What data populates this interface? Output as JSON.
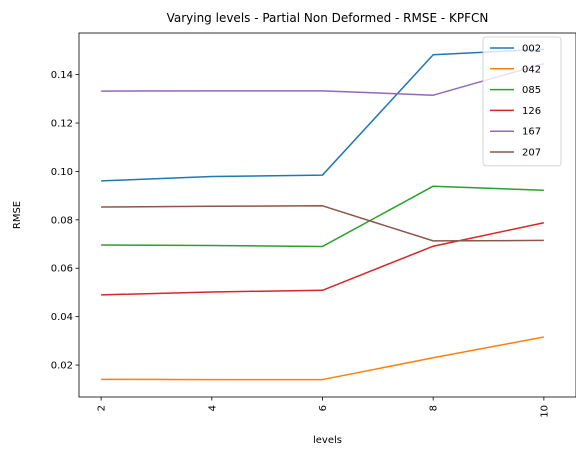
{
  "chart_data": {
    "type": "line",
    "title": "Varying levels - Partial Non Deformed - RMSE - KPFCN",
    "xlabel": "levels",
    "ylabel": "RMSE",
    "x": [
      2,
      4,
      6,
      8,
      10
    ],
    "x_tick_labels": [
      "2",
      "4",
      "6",
      "8",
      "10"
    ],
    "y_ticks": [
      0.02,
      0.04,
      0.06,
      0.08,
      0.1,
      0.12,
      0.14
    ],
    "y_tick_labels": [
      "0.02",
      "0.04",
      "0.06",
      "0.08",
      "0.10",
      "0.12",
      "0.14"
    ],
    "xlim": [
      1.6,
      10.4
    ],
    "ylim": [
      0.0068,
      0.1572
    ],
    "grid": false,
    "legend_position": "top-right",
    "series": [
      {
        "name": "002",
        "color": "#1f77b4",
        "values": [
          0.0961,
          0.0979,
          0.0985,
          0.1482,
          0.1505
        ]
      },
      {
        "name": "042",
        "color": "#ff7f0e",
        "values": [
          0.0141,
          0.014,
          0.014,
          0.023,
          0.0316
        ]
      },
      {
        "name": "085",
        "color": "#2ca02c",
        "values": [
          0.0696,
          0.0694,
          0.069,
          0.0939,
          0.0922
        ]
      },
      {
        "name": "126",
        "color": "#d62728",
        "values": [
          0.049,
          0.0502,
          0.0509,
          0.0691,
          0.0788
        ]
      },
      {
        "name": "167",
        "color": "#9467bd",
        "values": [
          0.1332,
          0.1333,
          0.1333,
          0.1315,
          0.1445
        ]
      },
      {
        "name": "207",
        "color": "#8c564b",
        "values": [
          0.0853,
          0.0856,
          0.0858,
          0.0713,
          0.0715
        ]
      }
    ]
  }
}
